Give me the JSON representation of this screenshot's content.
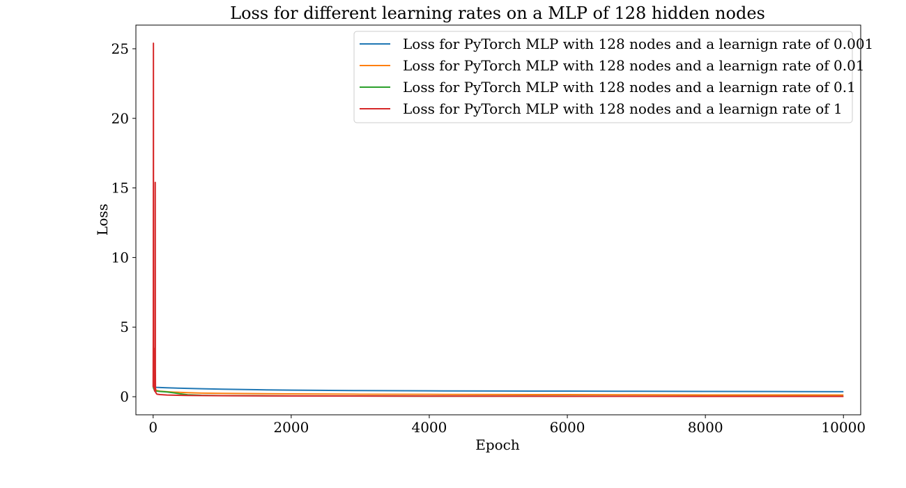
{
  "chart_data": {
    "type": "line",
    "title": "Loss for different learning rates on a MLP of 128 hidden nodes",
    "xlabel": "Epoch",
    "ylabel": "Loss",
    "xlim": [
      -250,
      10250
    ],
    "ylim": [
      -1.3,
      26.7
    ],
    "xticks": [
      0,
      2000,
      4000,
      6000,
      8000,
      10000
    ],
    "yticks": [
      0,
      5,
      10,
      15,
      20,
      25
    ],
    "xtick_labels": [
      "0",
      "2000",
      "4000",
      "6000",
      "8000",
      "10000"
    ],
    "ytick_labels": [
      "0",
      "5",
      "10",
      "15",
      "20",
      "25"
    ],
    "grid": false,
    "legend_position": "top-right",
    "series": [
      {
        "name": "Loss for PyTorch MLP with 128 nodes and a learnign rate of 0.001",
        "color": "#1f77b4",
        "x": [
          0,
          50,
          100,
          200,
          400,
          700,
          1000,
          1500,
          2000,
          3000,
          4000,
          5000,
          6000,
          7000,
          8000,
          9000,
          10000
        ],
        "y": [
          0.69,
          0.67,
          0.66,
          0.64,
          0.61,
          0.57,
          0.54,
          0.5,
          0.47,
          0.44,
          0.42,
          0.41,
          0.4,
          0.39,
          0.38,
          0.37,
          0.36
        ]
      },
      {
        "name": "Loss for PyTorch MLP with 128 nodes and a learnign rate of 0.01",
        "color": "#ff7f0e",
        "x": [
          0,
          50,
          100,
          200,
          300,
          500,
          700,
          1000,
          1500,
          2000,
          3000,
          4000,
          5000,
          6000,
          7000,
          8000,
          9000,
          10000
        ],
        "y": [
          0.69,
          0.45,
          0.4,
          0.36,
          0.33,
          0.29,
          0.26,
          0.24,
          0.22,
          0.2,
          0.18,
          0.17,
          0.16,
          0.15,
          0.14,
          0.13,
          0.13,
          0.12
        ]
      },
      {
        "name": "Loss for PyTorch MLP with 128 nodes and a learnign rate of 0.1",
        "color": "#2ca02c",
        "x": [
          0,
          20,
          50,
          100,
          200,
          300,
          400,
          500,
          700,
          1000,
          1500,
          2000,
          3000,
          4000,
          6000,
          8000,
          10000
        ],
        "y": [
          0.69,
          0.45,
          0.4,
          0.38,
          0.34,
          0.28,
          0.2,
          0.14,
          0.1,
          0.08,
          0.07,
          0.06,
          0.05,
          0.04,
          0.04,
          0.03,
          0.03
        ]
      },
      {
        "name": "Loss for PyTorch MLP with 128 nodes and a learnign rate of 1",
        "color": "#d62728",
        "x": [
          0,
          2,
          4,
          6,
          8,
          10,
          12,
          14,
          16,
          18,
          20,
          22,
          24,
          26,
          28,
          30,
          32,
          34,
          36,
          40,
          45,
          50,
          60,
          100,
          200,
          500,
          1000,
          2000,
          4000,
          6000,
          8000,
          10000
        ],
        "y": [
          0.69,
          5.0,
          25.4,
          1.0,
          3.5,
          0.8,
          2.0,
          0.6,
          0.9,
          0.5,
          0.7,
          0.4,
          1.5,
          0.6,
          0.9,
          15.4,
          2.0,
          0.5,
          0.3,
          0.3,
          0.25,
          0.2,
          0.18,
          0.15,
          0.12,
          0.09,
          0.07,
          0.05,
          0.04,
          0.03,
          0.02,
          0.02
        ]
      }
    ]
  }
}
